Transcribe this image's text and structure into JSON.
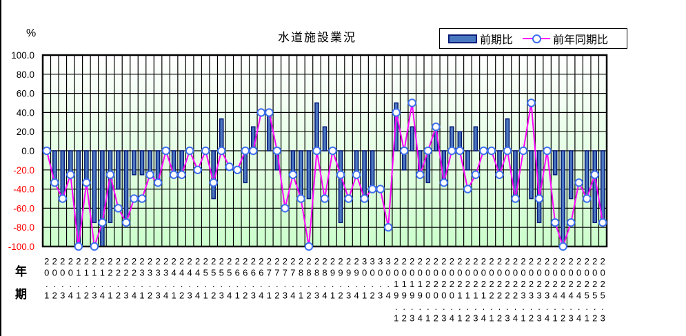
{
  "chart": {
    "title": "水道施設業況",
    "unit_label": "%",
    "row_label_year": "年",
    "row_label_quarter": "期",
    "legend": {
      "bar_label": "前期比",
      "line_label": "前年同期比"
    },
    "colors": {
      "bar_fill": "#4a78c0",
      "bar_border": "#0b1d7a",
      "line": "#ff00ff",
      "marker_border": "#3d6ff0",
      "marker_fill": "#ffffff",
      "plot_gradient_top": "#ffffff",
      "plot_gradient_bottom": "#ccffcc",
      "positive_tick": "#000000",
      "negative_tick": "#ff0000"
    }
  },
  "chart_data": {
    "type": "bar",
    "title": "水道施設業況",
    "xlabel": "年 / 期",
    "ylabel": "%",
    "ylim": [
      -100,
      100
    ],
    "yticks": [
      "100.0",
      "80.0",
      "60.0",
      "40.0",
      "20.0",
      "0.0",
      "-20.0",
      "-40.0",
      "-60.0",
      "-80.0",
      "-100.0"
    ],
    "grid": true,
    "legend_position": "top-right",
    "categories": [
      "20.1",
      "20.2",
      "20.3",
      "20.4",
      "21.1",
      "21.2",
      "21.3",
      "21.4",
      "22.1",
      "22.2",
      "22.3",
      "22.4",
      "23.1",
      "23.2",
      "23.3",
      "23.4",
      "24.1",
      "24.2",
      "24.3",
      "24.4",
      "25.1",
      "25.2",
      "25.3",
      "25.4",
      "26.1",
      "26.2",
      "26.3",
      "26.4",
      "27.1",
      "27.2",
      "27.3",
      "27.4",
      "28.1",
      "28.2",
      "28.3",
      "28.4",
      "29.1",
      "29.2",
      "29.3",
      "29.4",
      "30.1",
      "30.2",
      "30.3",
      "30.4",
      "2019.1",
      "2019.2",
      "2019.3",
      "2019.4",
      "2020.1",
      "2020.2",
      "2020.3",
      "2020.4",
      "2021.1",
      "2021.2",
      "2021.3",
      "2021.4",
      "2022.1",
      "2022.2",
      "2022.3",
      "2022.4",
      "2023.1",
      "2023.2",
      "2023.3",
      "2023.4",
      "2024.1",
      "2024.2",
      "2024.3",
      "2024.4",
      "2025.1",
      "2025.2",
      "2025.3"
    ],
    "series": [
      {
        "name": "前期比",
        "type": "bar",
        "values": [
          0,
          -33.3,
          -50,
          -25,
          -100,
          -33.3,
          -75,
          -100,
          -75,
          -40,
          -75,
          -25,
          -25,
          -25,
          -33.3,
          0,
          -25,
          -25,
          0,
          0,
          0,
          -50,
          33.3,
          0,
          0,
          -33.3,
          25,
          0,
          40,
          -20,
          0,
          -25,
          -50,
          -50,
          50,
          25,
          0,
          -75,
          0,
          -25,
          -50,
          -40,
          0,
          0,
          50,
          -20,
          25,
          -25,
          -33.3,
          25,
          -33.3,
          25,
          20,
          -20,
          25,
          0,
          0,
          -20,
          33.3,
          -50,
          0,
          -50,
          -75,
          0,
          -25,
          -100,
          -50,
          0,
          -50,
          -75,
          -75
        ]
      },
      {
        "name": "前年同期比",
        "type": "line",
        "values": [
          0,
          -33.3,
          -50,
          -25,
          -100,
          -33.3,
          -100,
          -75,
          -25,
          -60,
          -75,
          -50,
          -50,
          -25,
          -33.3,
          0,
          -25,
          -25,
          0,
          -20,
          0,
          -33.3,
          0,
          -16.7,
          -20,
          0,
          0,
          40,
          40,
          0,
          -60,
          -25,
          -50,
          -100,
          0,
          -50,
          0,
          -25,
          -50,
          -25,
          -50,
          -40,
          -40,
          -80,
          40,
          0,
          50,
          -25,
          0,
          25,
          -33.3,
          0,
          0,
          -40,
          -25,
          0,
          0,
          -25,
          0,
          -50,
          0,
          50,
          -50,
          0,
          -75,
          -100,
          -75,
          -33.3,
          -50,
          -25,
          -75
        ]
      }
    ]
  }
}
